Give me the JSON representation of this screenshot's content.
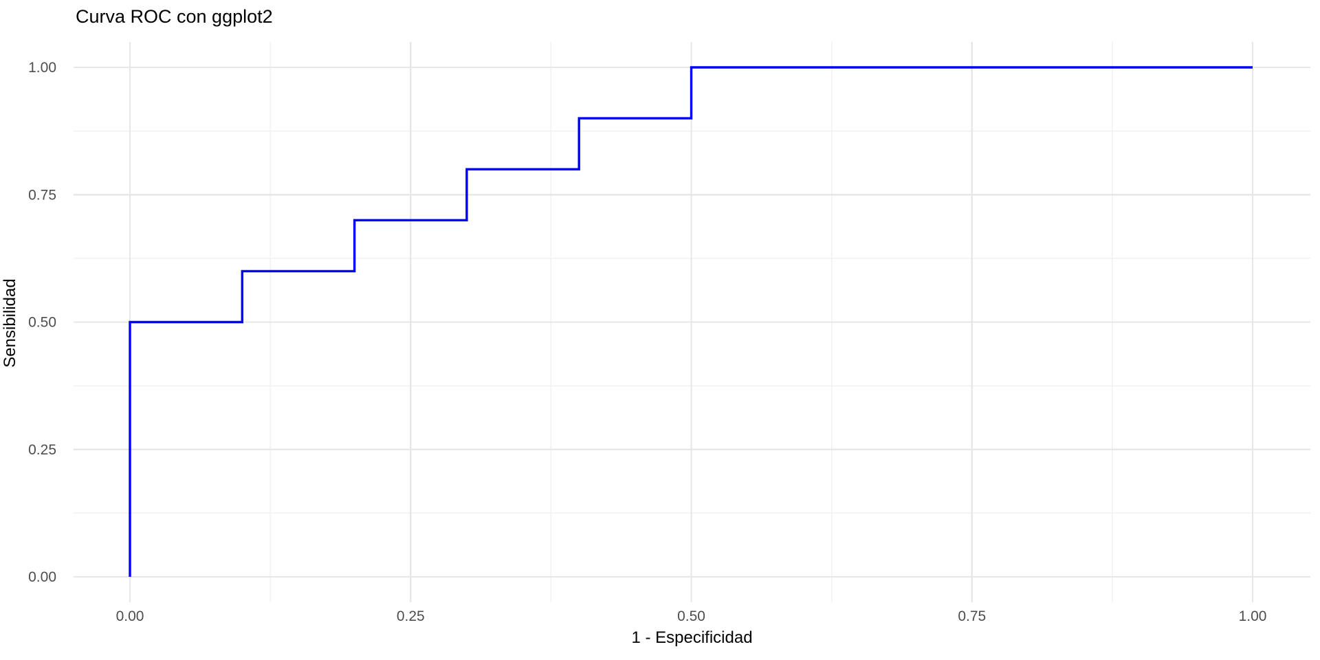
{
  "title": "Curva ROC con ggplot2",
  "chart_data": {
    "type": "line",
    "line_style": "step",
    "title": "Curva ROC con ggplot2",
    "xlabel": "1 - Especificidad",
    "ylabel": "Sensibilidad",
    "xlim": [
      0,
      1
    ],
    "ylim": [
      0,
      1
    ],
    "x_ticks": [
      0.0,
      0.25,
      0.5,
      0.75,
      1.0
    ],
    "x_tick_labels": [
      "0.00",
      "0.25",
      "0.50",
      "0.75",
      "1.00"
    ],
    "y_ticks": [
      0.0,
      0.25,
      0.5,
      0.75,
      1.0
    ],
    "y_tick_labels": [
      "0.00",
      "0.25",
      "0.50",
      "0.75",
      "1.00"
    ],
    "x_minor_ticks": [
      0.125,
      0.375,
      0.625,
      0.875
    ],
    "y_minor_ticks": [
      0.125,
      0.375,
      0.625,
      0.875
    ],
    "grid": "major-and-minor",
    "legend": "none",
    "series": [
      {
        "name": "ROC curve",
        "color": "#0000FF",
        "points": [
          [
            0.0,
            0.0
          ],
          [
            0.0,
            0.5
          ],
          [
            0.1,
            0.5
          ],
          [
            0.1,
            0.6
          ],
          [
            0.2,
            0.6
          ],
          [
            0.2,
            0.7
          ],
          [
            0.3,
            0.7
          ],
          [
            0.3,
            0.8
          ],
          [
            0.4,
            0.8
          ],
          [
            0.4,
            0.9
          ],
          [
            0.5,
            0.9
          ],
          [
            0.5,
            1.0
          ],
          [
            1.0,
            1.0
          ]
        ]
      }
    ],
    "colors": {
      "background": "#FFFFFF",
      "grid_major": "#E7E7E7",
      "grid_minor": "#F1F1F1",
      "tick_label": "#4D4D4D",
      "title_text": "#000000",
      "line": "#0000FF"
    }
  }
}
